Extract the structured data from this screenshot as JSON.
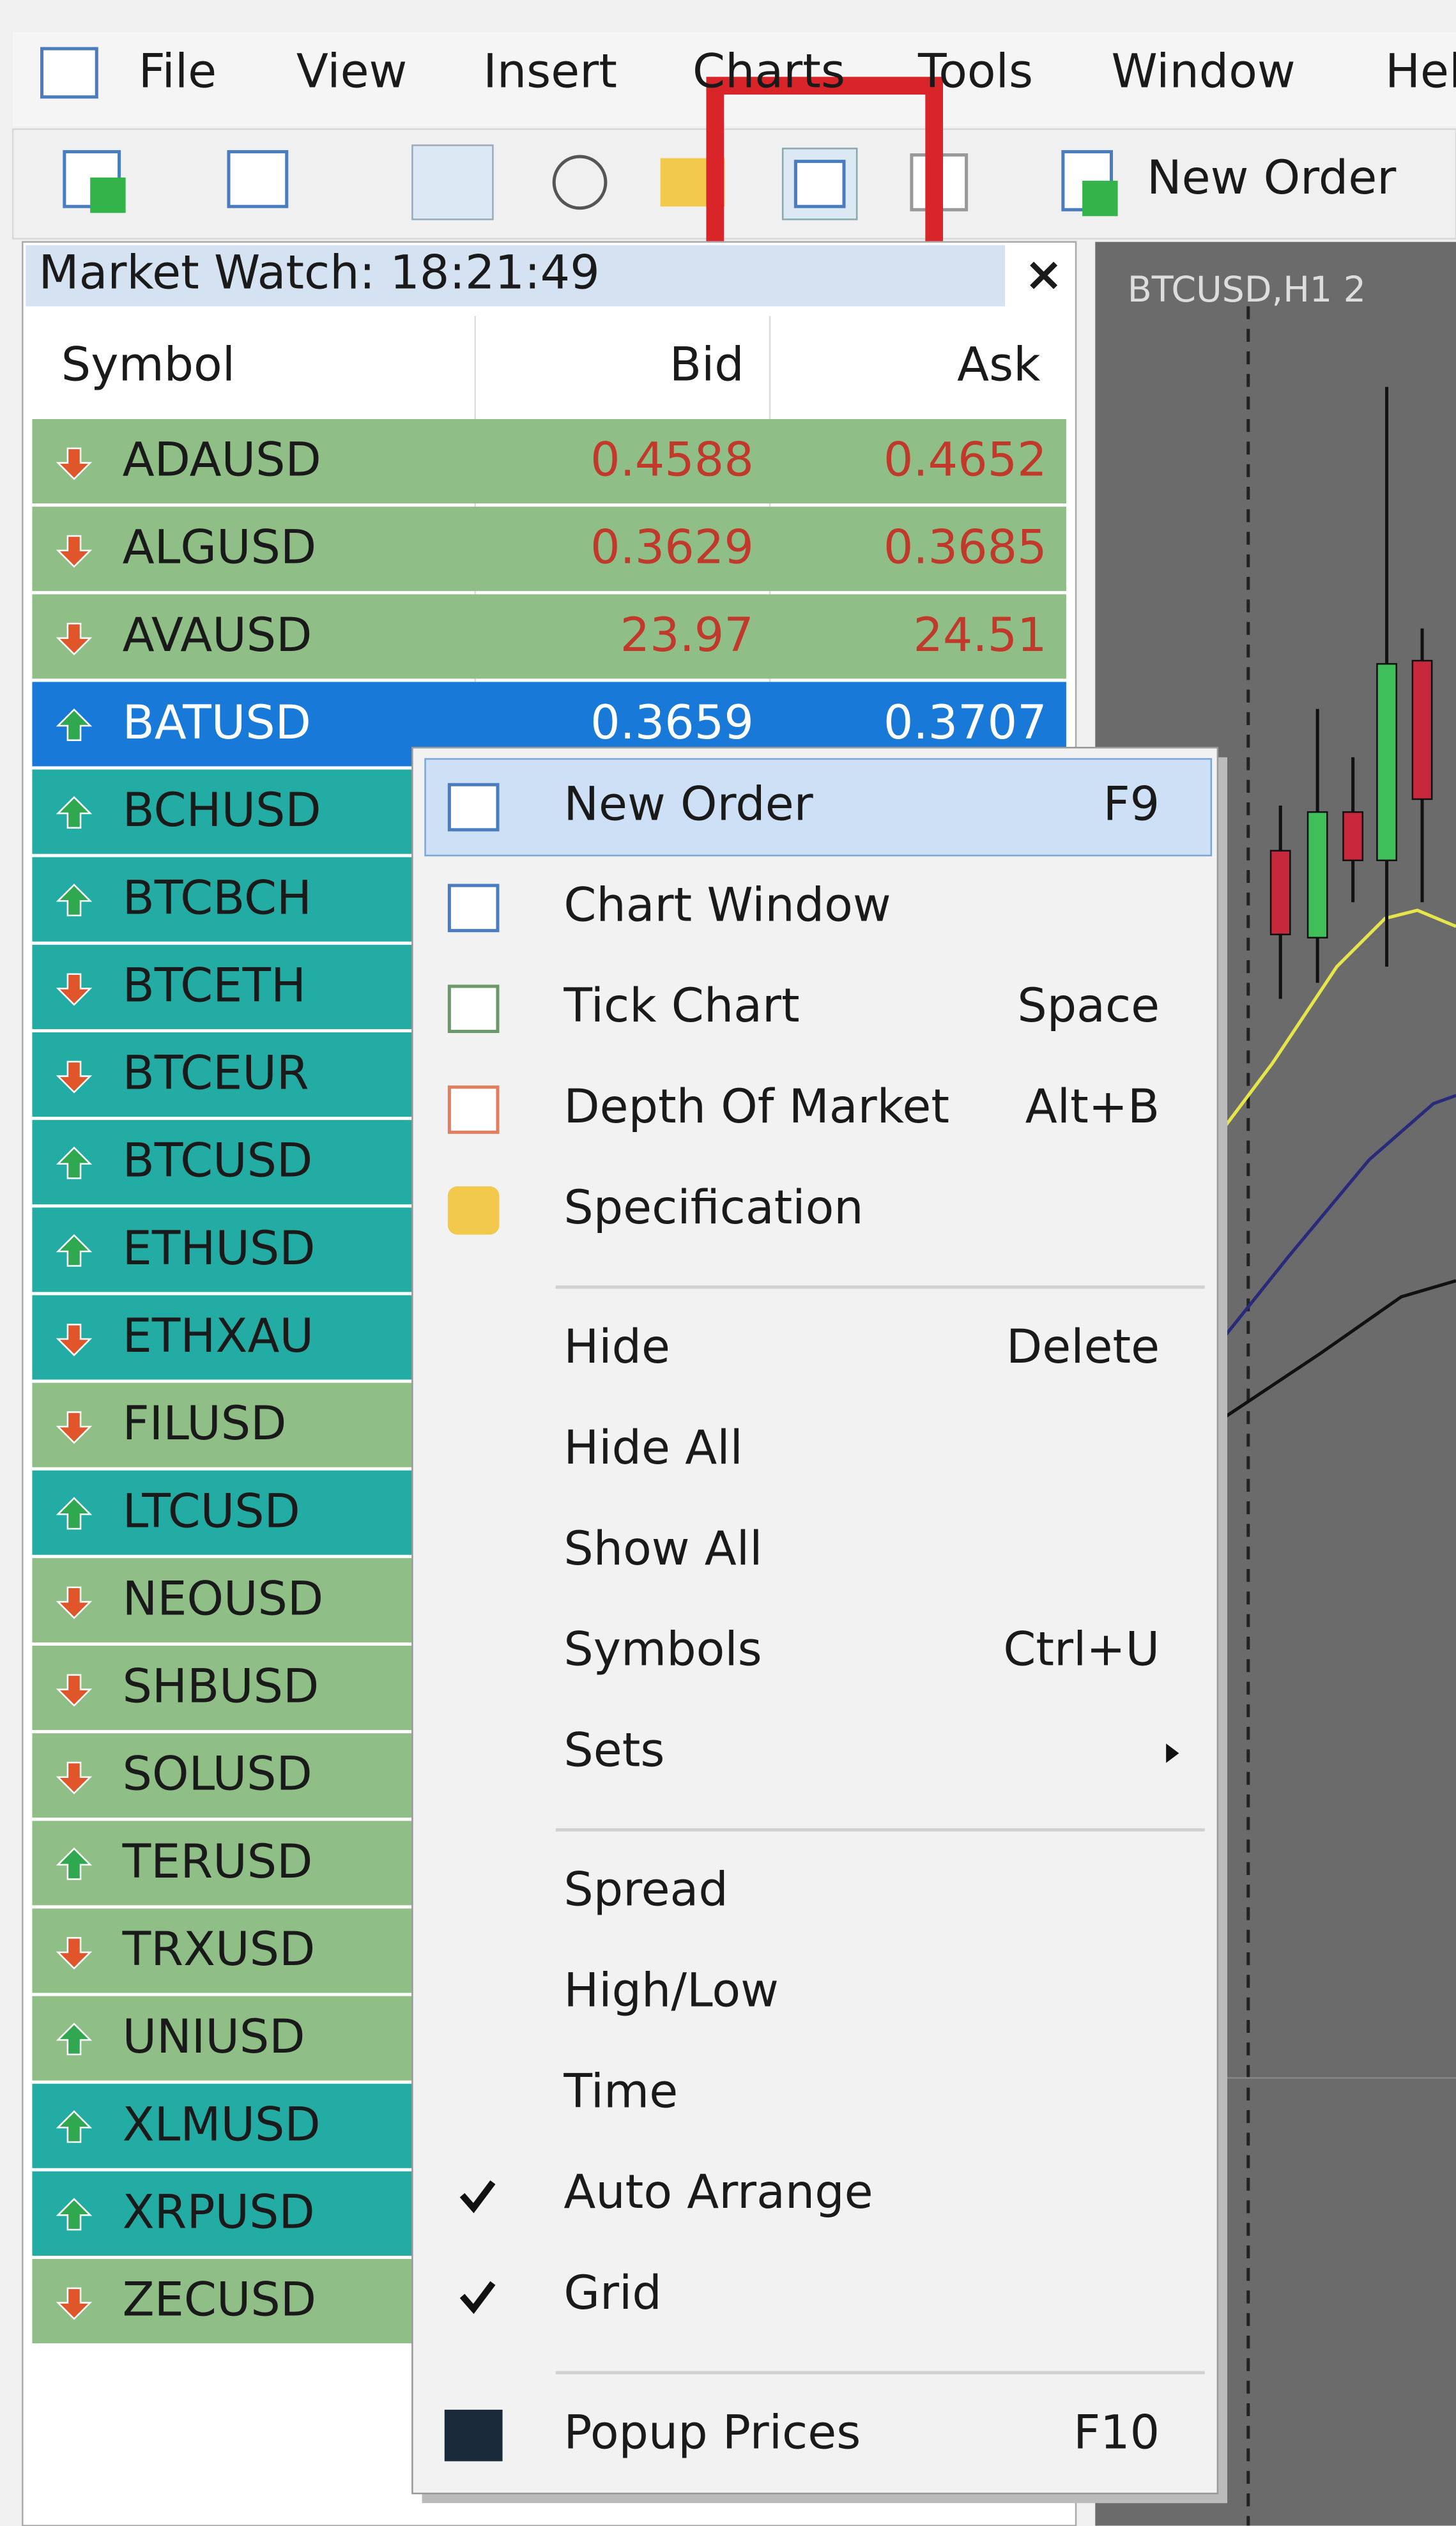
{
  "menubar": [
    "File",
    "View",
    "Insert",
    "Charts",
    "Tools",
    "Window",
    "Hel"
  ],
  "toolbar": {
    "new_order": "New Order"
  },
  "market_watch": {
    "title": "Market Watch: 18:21:49",
    "close": "×",
    "columns": [
      "Symbol",
      "Bid",
      "Ask"
    ],
    "rows": [
      {
        "symbol": "ADAUSD",
        "trend": "down",
        "color": "#8fbf86",
        "bid": 0.4588,
        "ask": 0.4652
      },
      {
        "symbol": "ALGUSD",
        "trend": "down",
        "color": "#8fbf86",
        "bid": 0.3629,
        "ask": 0.3685
      },
      {
        "symbol": "AVAUSD",
        "trend": "down",
        "color": "#8fbf86",
        "bid": 23.97,
        "ask": 24.51
      },
      {
        "symbol": "BATUSD",
        "trend": "up",
        "color": "#1979d8",
        "bid": 0.3659,
        "ask": 0.3707
      },
      {
        "symbol": "BCHUSD",
        "trend": "up",
        "color": "#23aca4"
      },
      {
        "symbol": "BTCBCH",
        "trend": "up",
        "color": "#23aca4"
      },
      {
        "symbol": "BTCETH",
        "trend": "down",
        "color": "#23aca4"
      },
      {
        "symbol": "BTCEUR",
        "trend": "down",
        "color": "#23aca4"
      },
      {
        "symbol": "BTCUSD",
        "trend": "up",
        "color": "#23aca4"
      },
      {
        "symbol": "ETHUSD",
        "trend": "up",
        "color": "#23aca4"
      },
      {
        "symbol": "ETHXAU",
        "trend": "down",
        "color": "#23aca4"
      },
      {
        "symbol": "FILUSD",
        "trend": "down",
        "color": "#8fbf86"
      },
      {
        "symbol": "LTCUSD",
        "trend": "up",
        "color": "#23aca4"
      },
      {
        "symbol": "NEOUSD",
        "trend": "down",
        "color": "#8fbf86"
      },
      {
        "symbol": "SHBUSD",
        "trend": "down",
        "color": "#8fbf86"
      },
      {
        "symbol": "SOLUSD",
        "trend": "down",
        "color": "#8fbf86"
      },
      {
        "symbol": "TERUSD",
        "trend": "up",
        "color": "#8fbf86"
      },
      {
        "symbol": "TRXUSD",
        "trend": "down",
        "color": "#8fbf86"
      },
      {
        "symbol": "UNIUSD",
        "trend": "up",
        "color": "#8fbf86"
      },
      {
        "symbol": "XLMUSD",
        "trend": "up",
        "color": "#23aca4"
      },
      {
        "symbol": "XRPUSD",
        "trend": "up",
        "color": "#23aca4"
      },
      {
        "symbol": "ZECUSD",
        "trend": "down",
        "color": "#8fbf86"
      }
    ]
  },
  "chart": {
    "label": "BTCUSD,H1  2"
  },
  "context_menu": [
    {
      "label": "New Order",
      "shortcut": "F9",
      "highlighted": true
    },
    {
      "label": "Chart Window"
    },
    {
      "label": "Tick Chart",
      "shortcut": "Space"
    },
    {
      "label": "Depth Of Market",
      "shortcut": "Alt+B"
    },
    {
      "label": "Specification",
      "separator_after": true
    },
    {
      "label": "Hide",
      "shortcut": "Delete"
    },
    {
      "label": "Hide All"
    },
    {
      "label": "Show All"
    },
    {
      "label": "Symbols",
      "shortcut": "Ctrl+U"
    },
    {
      "label": "Sets",
      "submenu": true,
      "separator_after": true
    },
    {
      "label": "Spread"
    },
    {
      "label": "High/Low"
    },
    {
      "label": "Time"
    },
    {
      "label": "Auto Arrange",
      "checked": true
    },
    {
      "label": "Grid",
      "checked": true,
      "separator_after": true
    },
    {
      "label": "Popup Prices",
      "shortcut": "F10"
    }
  ]
}
